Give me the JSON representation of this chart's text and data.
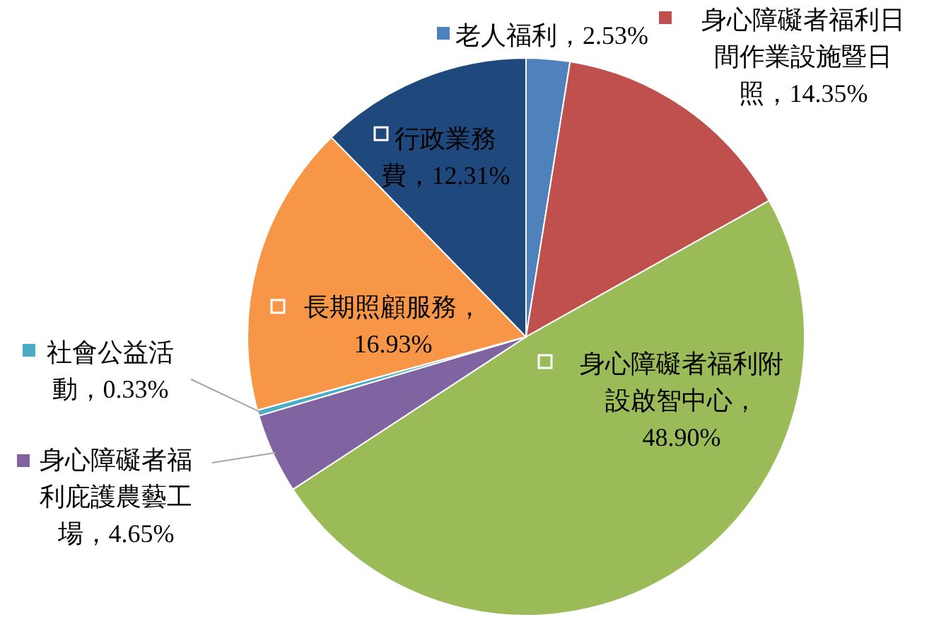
{
  "chart_data": {
    "type": "pie",
    "categories": [
      "老人福利",
      "身心障礙者福利日間作業設施暨日照",
      "身心障礙者福利附設啟智中心",
      "身心障礙者福利庇護農藝工場",
      "社會公益活動",
      "長期照顧服務",
      "行政業務費"
    ],
    "legend": "top left",
    "values": [
      2.53,
      14.35,
      48.9,
      4.65,
      0.33,
      16.93,
      12.31
    ],
    "value_labels": [
      "，2.53%",
      "，14.35%",
      "，48.90%",
      "，4.65%",
      "，0.33%",
      "，16.93%",
      "，12.31%"
    ],
    "colors": [
      "#4f81bd",
      "#c0504d",
      "#9bbb59",
      "#8064a2",
      "#4bacc6",
      "#f79646",
      "#1f497d"
    ]
  }
}
